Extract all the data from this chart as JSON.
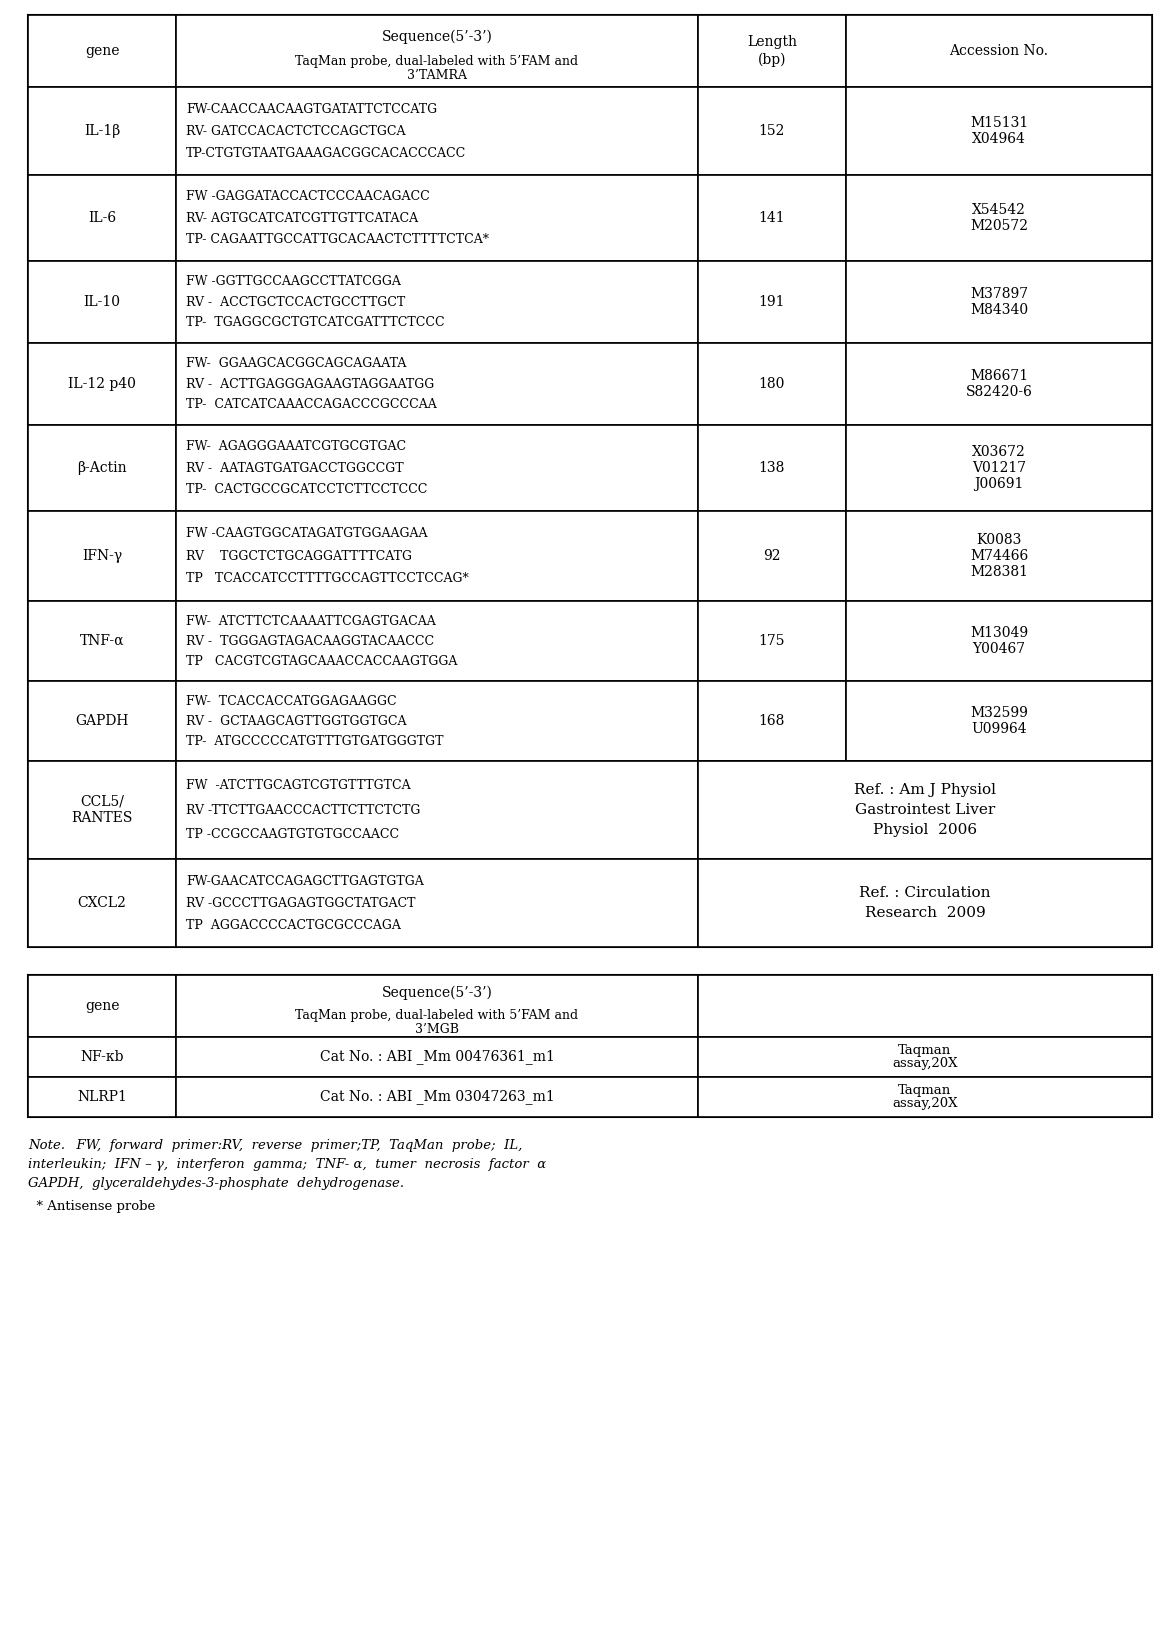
{
  "table1": {
    "header": {
      "gene": "gene",
      "seq_line1": "Sequence(5’-3’)",
      "seq_line2": "TaqMan probe, dual-labeled with 5’FAM and",
      "seq_line3": "3’TAMRA",
      "length_line1": "Length",
      "length_line2": "(bp)",
      "accession": "Accession No."
    },
    "rows": [
      {
        "gene": "IL-1β",
        "seq1": "FW-CAACCAACAAGTGATATTCTCCATG",
        "seq2": "RV- GATCCACACTCTCCAGCTGCA",
        "seq3": "TP-CTGTGTAATGAAAGACGGCACACCCACC",
        "length": "152",
        "acc1": "M15131",
        "acc2": "X04964",
        "asterisk": false,
        "ref": false
      },
      {
        "gene": "IL-6",
        "seq1": "FW -GAGGATACCACTCCCAACAGACC",
        "seq2": "RV- AGTGCATCATCGTTGTTCATACA",
        "seq3": "TP- CAGAATTGCCATTGCACAACTCTTTTCTCA",
        "length": "141",
        "acc1": "X54542",
        "acc2": "M20572",
        "asterisk": true,
        "ref": false
      },
      {
        "gene": "IL-10",
        "seq1": "FW -GGTTGCCAAGCCTTATCGGA",
        "seq2": "RV -  ACCTGCTCCACTGCCTTGCT",
        "seq3": "TP-  TGAGGCGCTGTCATCGATTTCTCCC",
        "length": "191",
        "acc1": "M37897",
        "acc2": "M84340",
        "asterisk": false,
        "ref": false
      },
      {
        "gene": "IL-12 p40",
        "seq1": "FW-  GGAAGCACGGCAGCAGAATA",
        "seq2": "RV -  ACTTGAGGGAGAAGTAGGAATGG",
        "seq3": "TP-  CATCATCAAACCAGACCCGCCCAA",
        "length": "180",
        "acc1": "M86671",
        "acc2": "S82420-6",
        "asterisk": false,
        "ref": false
      },
      {
        "gene": "β-Actin",
        "seq1": "FW-  AGAGGGAAATCGTGCGTGAC",
        "seq2": "RV -  AATAGTGATGACCTGGCCGT",
        "seq3": "TP-  CACTGCCGCATCCTCTTCCTCCC",
        "length": "138",
        "acc1": "X03672",
        "acc2": "V01217",
        "acc3": "J00691",
        "asterisk": false,
        "ref": false
      },
      {
        "gene": "IFN-γ",
        "seq1": "FW -CAAGTGGCATAGATGTGGAAGAA",
        "seq2": "RV    TGGCTCTGCAGGATTTTCATG",
        "seq3": "TP   TCACCATCCTTTTGCCAGTTCCTCCAG",
        "length": "92",
        "acc1": "K0083",
        "acc2": "M74466",
        "acc3": "M28381",
        "asterisk": true,
        "ref": false
      },
      {
        "gene": "TNF-α",
        "seq1": "FW-  ATCTTCTCAAAATTCGAGTGACAA",
        "seq2": "RV -  TGGGAGTAGACAAGGTACAACCC",
        "seq3": "TP   CACGTCGTAGCAAACCACCAAGTGGA",
        "length": "175",
        "acc1": "M13049",
        "acc2": "Y00467",
        "asterisk": false,
        "ref": false
      },
      {
        "gene": "GAPDH",
        "seq1": "FW-  TCACCACCATGGAGAAGGC",
        "seq2": "RV -  GCTAAGCAGTTGGTGGTGCA",
        "seq3": "TP-  ATGCCCCCATGTTTGTGATGGGTGT",
        "length": "168",
        "acc1": "M32599",
        "acc2": "U09964",
        "asterisk": false,
        "ref": false
      },
      {
        "gene": "CCL5/\nRANTES",
        "seq1": "FW  -ATCTTGCAGTCGTGTTTGTCA",
        "seq2": "RV -TTCTTGAACCCACTTCTTCTCTG",
        "seq3": "TP -CCGCCAAGTGTGTGCCAACC",
        "length": "",
        "ref_line1": "Ref. : Am J Physiol",
        "ref_line2": "Gastrointest Liver",
        "ref_line3": "Physiol  2006",
        "asterisk": false,
        "ref": true
      },
      {
        "gene": "CXCL2",
        "seq1": "FW-GAACATCCAGAGCTTGAGTGTGA",
        "seq2": "RV -GCCCTTGAGAGTGGCTATGACT",
        "seq3": "TP  AGGACCCCACTGCGCCCAGA",
        "length": "",
        "ref_line1": "Ref. : Circulation",
        "ref_line2": "Research  2009",
        "ref_line3": "",
        "asterisk": false,
        "ref": true
      }
    ]
  },
  "table2": {
    "header": {
      "gene": "gene",
      "seq_line1": "Sequence(5’-3’)",
      "seq_line2": "TaqMan probe, dual-labeled with 5’FAM and",
      "seq_line3": "3’MGB"
    },
    "rows": [
      {
        "gene": "NF-κb",
        "sequence": "Cat No. : ABI _Mm 00476361_m1",
        "accession": "Taqman\nassay,20X"
      },
      {
        "gene": "NLRP1",
        "sequence": "Cat No. : ABI _Mm 03047263_m1",
        "accession": "Taqman\nassay,20X"
      }
    ]
  },
  "note_italic": "Note.",
  "note_rest1": "  FW,  forward  primer:RV,  reverse  primer;TP,  TaqMan  probe;  IL,",
  "note_rest2": "interleukin;  IFN – γ,  interferon  gamma;  TNF- α,  tumer  necrosis  factor  α",
  "note_rest3": "GAPDH,  glyceraldehydes-3-phosphate  dehydrogenase.",
  "footnote": "  * Antisense probe"
}
